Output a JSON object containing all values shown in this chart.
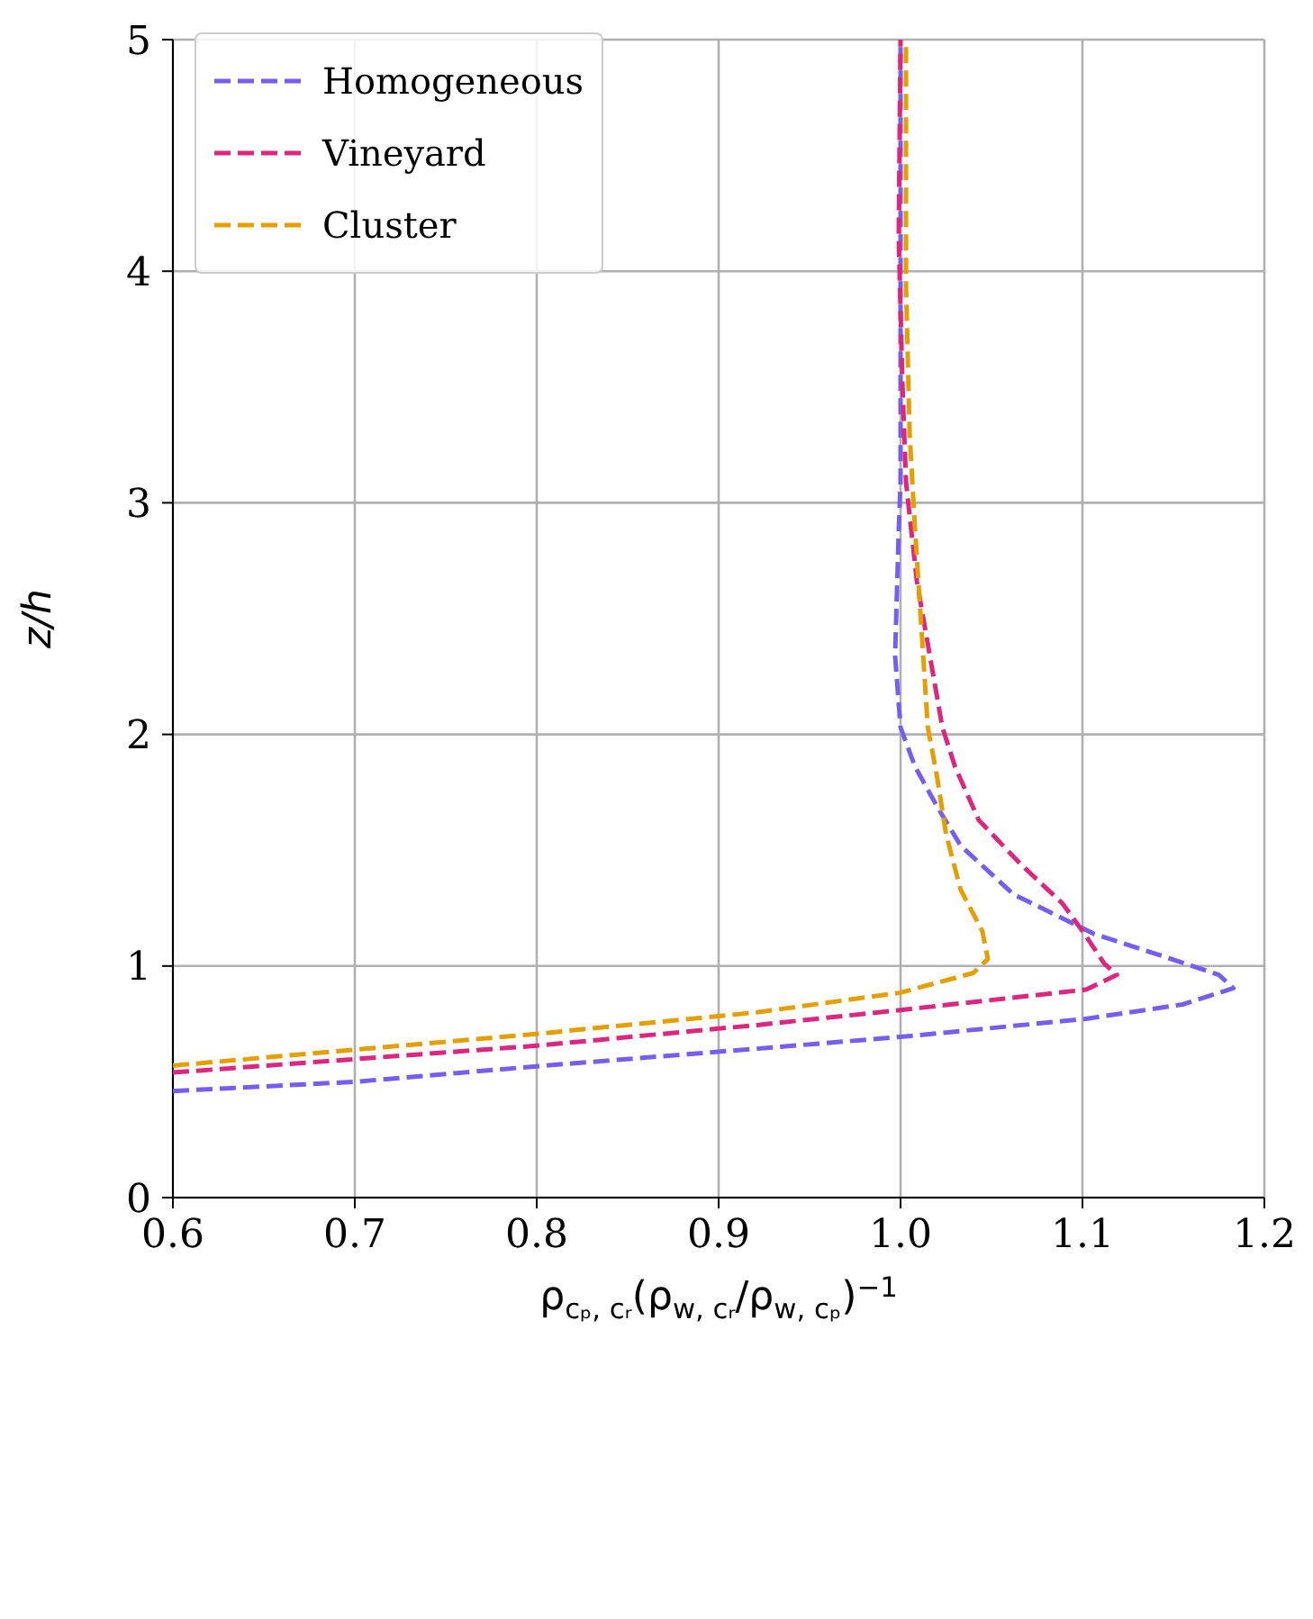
{
  "chart_data": {
    "type": "line",
    "xlabel": "ρ$_{cₚ, cᵣ}$(ρ$_{w, cᵣ}$/ρ$_{w, cₚ}$)$^{−1}$",
    "ylabel": "z/h",
    "xlim": [
      0.6,
      1.2
    ],
    "xticks": [
      {
        "value": 0.6,
        "label": "0.6"
      },
      {
        "value": 0.7,
        "label": "0.7"
      },
      {
        "value": 0.8,
        "label": "0.8"
      },
      {
        "value": 0.9,
        "label": "0.9"
      },
      {
        "value": 1.0,
        "label": "1.0"
      },
      {
        "value": 1.1,
        "label": "1.1"
      },
      {
        "value": 1.2,
        "label": "1.2"
      }
    ],
    "ylim": [
      0,
      5
    ],
    "yticks": [
      0,
      1,
      2,
      3,
      4,
      5
    ],
    "grid": true,
    "legend": "top left",
    "line_style": "dashed",
    "marker": "none",
    "series": [
      {
        "name": "Homogeneous",
        "color": "#785ef0",
        "x": [
          0.6,
          0.7,
          0.8,
          0.921,
          1.0,
          1.101,
          1.155,
          1.183,
          1.175,
          1.149,
          1.106,
          1.062,
          1.033,
          1.02,
          1.008,
          1.0,
          0.997,
          0.999,
          1.0,
          1.0
        ],
        "values": [
          0.46,
          0.5,
          0.567,
          0.643,
          0.694,
          0.771,
          0.834,
          0.904,
          0.962,
          1.03,
          1.14,
          1.31,
          1.52,
          1.69,
          1.86,
          2.03,
          2.34,
          2.88,
          3.09,
          5
        ]
      },
      {
        "name": "Vineyard",
        "color": "#dc267f",
        "x": [
          0.6,
          0.8,
          0.921,
          1.0,
          1.102,
          1.119,
          1.112,
          1.101,
          1.089,
          1.066,
          1.043,
          1.03,
          1.023,
          1.009,
          1.003,
          1.001,
          0.999,
          1.0
        ],
        "values": [
          0.54,
          0.656,
          0.745,
          0.81,
          0.898,
          0.962,
          1.01,
          1.14,
          1.27,
          1.44,
          1.63,
          1.86,
          2.03,
          2.66,
          3.09,
          3.52,
          4.15,
          5
        ]
      },
      {
        "name": "Cluster",
        "color": "#e69f00",
        "x": [
          0.6,
          0.8,
          0.921,
          1.0,
          1.04,
          1.048,
          1.045,
          1.033,
          1.025,
          1.02,
          1.015,
          1.008,
          1.005,
          1.003,
          1.003
        ],
        "values": [
          0.57,
          0.707,
          0.8,
          0.885,
          0.97,
          1.03,
          1.15,
          1.33,
          1.57,
          1.82,
          2.03,
          2.88,
          3.3,
          3.94,
          5
        ]
      }
    ]
  }
}
